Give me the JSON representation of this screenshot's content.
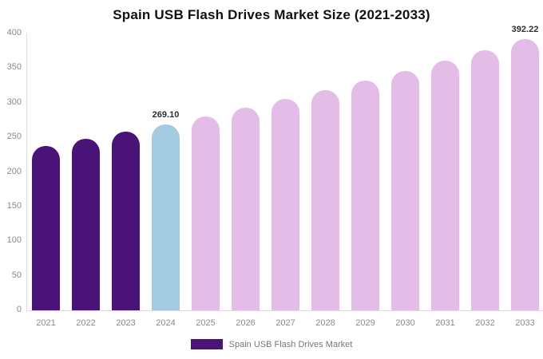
{
  "chart_data": {
    "type": "bar",
    "title": "Spain USB Flash Drives Market Size (2021-2033)",
    "categories": [
      "2021",
      "2022",
      "2023",
      "2024",
      "2025",
      "2026",
      "2027",
      "2028",
      "2029",
      "2030",
      "2031",
      "2032",
      "2033"
    ],
    "values": [
      237.33,
      247.49,
      258.08,
      269.1,
      280.62,
      292.63,
      305.15,
      318.21,
      331.83,
      346.03,
      360.84,
      376.28,
      392.22
    ],
    "data_labels": [
      {
        "category": "2024",
        "text": "269.10"
      },
      {
        "category": "2033",
        "text": "392.22"
      }
    ],
    "y_ticks": [
      0,
      50,
      100,
      150,
      200,
      250,
      300,
      350,
      400
    ],
    "ylim": [
      0,
      400
    ],
    "xlabel": "",
    "ylabel": "",
    "grid": false,
    "legend_position": "bottom",
    "bar_colors": [
      "#4A1377",
      "#4A1377",
      "#4A1377",
      "#A3CBE2",
      "#E3BCE7",
      "#E3BCE7",
      "#E3BCE7",
      "#E3BCE7",
      "#E3BCE7",
      "#E3BCE7",
      "#E3BCE7",
      "#E3BCE7",
      "#E3BCE7"
    ]
  },
  "legend": {
    "label": "Spain USB Flash Drives Market",
    "swatch_color": "#4A1377"
  },
  "colors": {
    "historical_bars": "#4A1377",
    "highlight_bar_2024": "#A3CBE2",
    "forecast_bars": "#E3BCE7",
    "axis_text": "#8A8A8A",
    "data_label_text": "#2E2E2E",
    "axis_line": "#DCDCDC",
    "title_text": "#111111"
  }
}
